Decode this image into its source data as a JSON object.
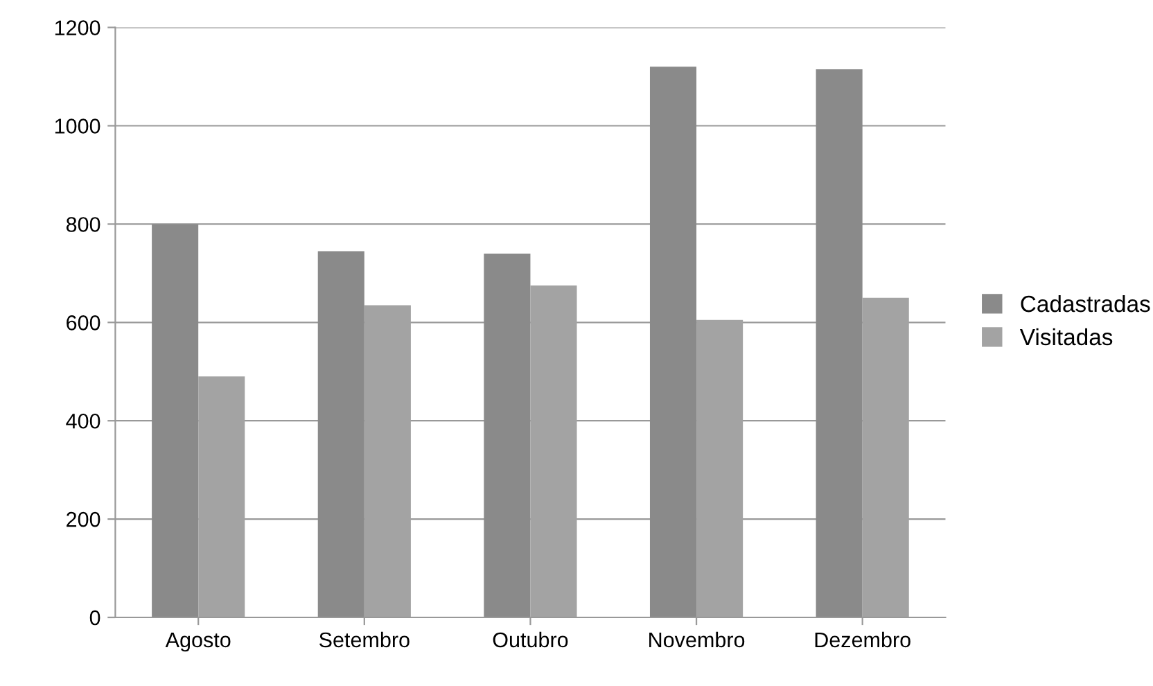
{
  "chart_data": {
    "type": "bar",
    "categories": [
      "Agosto",
      "Setembro",
      "Outubro",
      "Novembro",
      "Dezembro"
    ],
    "series": [
      {
        "name": "Cadastradas",
        "color": "#8a8a8a",
        "values": [
          800,
          745,
          740,
          1120,
          1115
        ]
      },
      {
        "name": "Visitadas",
        "color": "#a3a3a3",
        "values": [
          490,
          635,
          675,
          605,
          650
        ]
      }
    ],
    "ylim": [
      0,
      1200
    ],
    "yticks": [
      0,
      200,
      400,
      600,
      800,
      1000,
      1200
    ],
    "grid": "y",
    "legend": "right"
  }
}
